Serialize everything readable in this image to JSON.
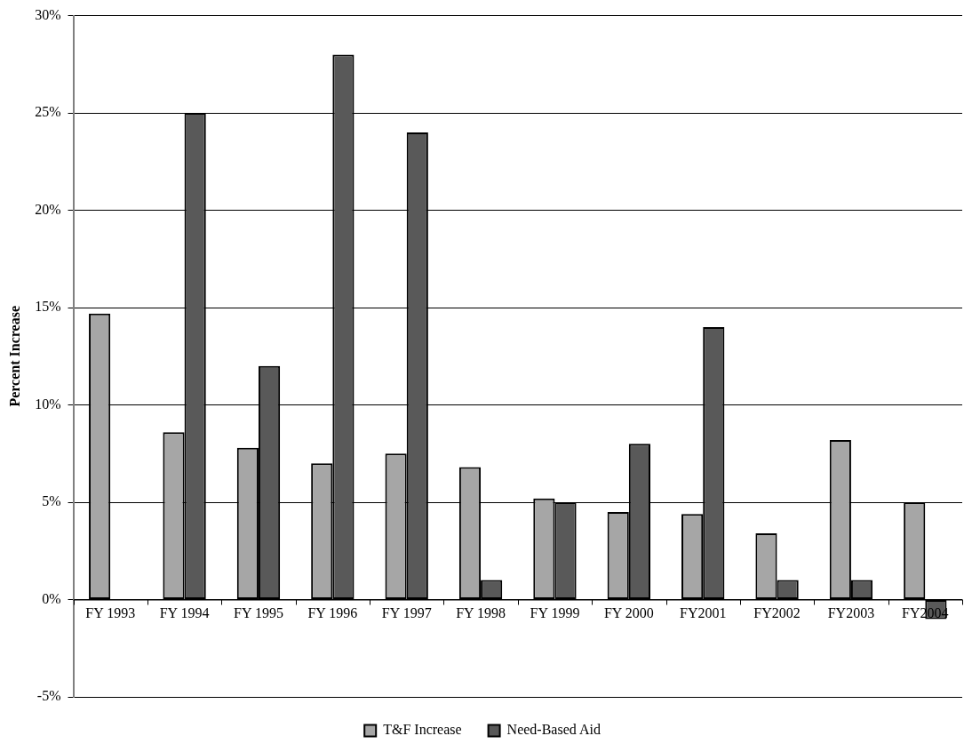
{
  "chart_data": {
    "type": "bar",
    "ylabel": "Percent Increase",
    "categories": [
      "FY 1993",
      "FY 1994",
      "FY 1995",
      "FY 1996",
      "FY 1997",
      "FY 1998",
      "FY 1999",
      "FY 2000",
      "FY2001",
      "FY2002",
      "FY2003",
      "FY2004"
    ],
    "series": [
      {
        "name": "T&F Increase",
        "color": "#a6a6a6",
        "values": [
          14.7,
          8.6,
          7.8,
          7.0,
          7.5,
          6.8,
          5.2,
          4.5,
          4.4,
          3.4,
          8.2,
          5.0
        ]
      },
      {
        "name": "Need-Based Aid",
        "color": "#595959",
        "values": [
          null,
          25,
          12,
          28,
          24,
          1,
          5,
          8,
          14,
          1,
          1,
          -1
        ]
      }
    ],
    "ylim": [
      -5,
      30
    ],
    "yticks": [
      {
        "value": -5,
        "label": "-5%"
      },
      {
        "value": 0,
        "label": "0%"
      },
      {
        "value": 5,
        "label": "5%"
      },
      {
        "value": 10,
        "label": "10%"
      },
      {
        "value": 15,
        "label": "15%"
      },
      {
        "value": 20,
        "label": "20%"
      },
      {
        "value": 25,
        "label": "25%"
      },
      {
        "value": 30,
        "label": "30%"
      }
    ],
    "grid": "y",
    "legend": "bottom"
  }
}
